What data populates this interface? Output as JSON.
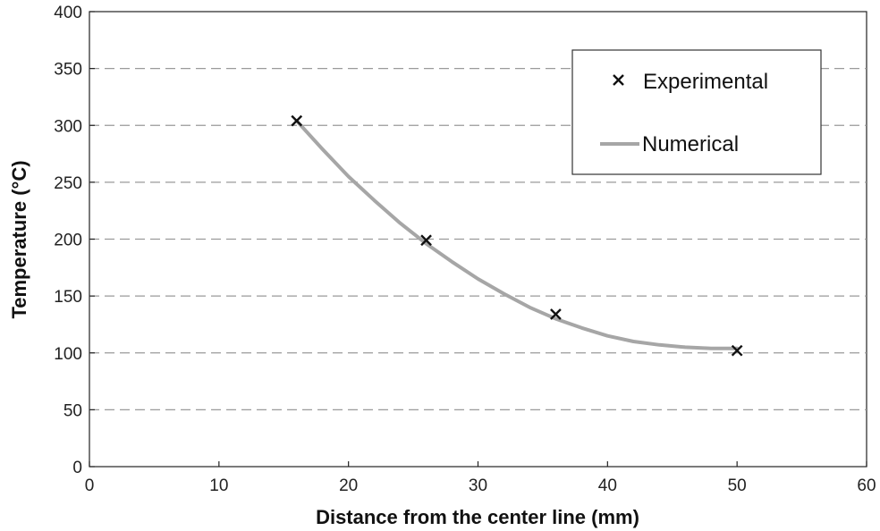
{
  "chart_data": {
    "type": "scatter",
    "xlabel": "Distance from the center line (mm)",
    "ylabel": "Temperature (°C)",
    "xlim": [
      0,
      60
    ],
    "ylim": [
      0,
      400
    ],
    "x_ticks": [
      0,
      10,
      20,
      30,
      40,
      50,
      60
    ],
    "y_ticks": [
      0,
      50,
      100,
      150,
      200,
      250,
      300,
      350,
      400
    ],
    "grid": "horizontal dashed",
    "legend_position": "top-right",
    "series": [
      {
        "name": "Experimental",
        "kind": "markers",
        "marker": "x",
        "color": "#111111",
        "x": [
          16,
          26,
          36,
          50
        ],
        "y": [
          304,
          199,
          134,
          102
        ]
      },
      {
        "name": "Numerical",
        "kind": "line",
        "color": "#a6a6a6",
        "x": [
          16,
          18,
          20,
          22,
          24,
          26,
          28,
          30,
          32,
          34,
          36,
          38,
          40,
          42,
          44,
          46,
          48,
          50
        ],
        "y": [
          304,
          279,
          255,
          234,
          214,
          196,
          180,
          165,
          152,
          140,
          130,
          122,
          115,
          110,
          107,
          105,
          104,
          104
        ]
      }
    ]
  }
}
